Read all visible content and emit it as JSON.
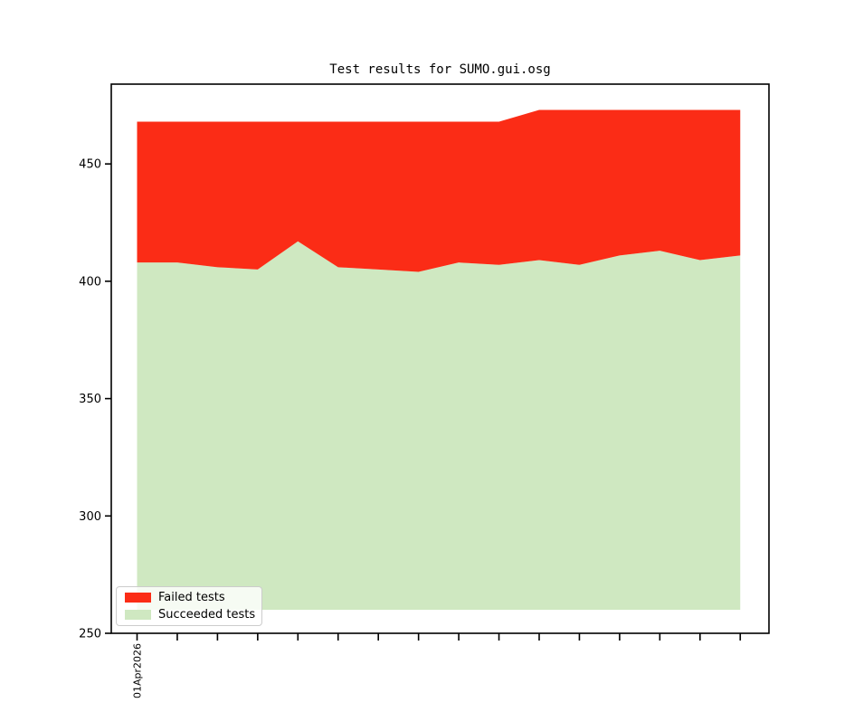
{
  "figure": {
    "background": "#ffffff",
    "axes_color": "#000000"
  },
  "chart_data": {
    "type": "area",
    "stacked": true,
    "title": "Test results for SUMO.gui.osg",
    "xlabel": "",
    "ylabel": "",
    "ylim": [
      250,
      484
    ],
    "yticks": [
      250,
      300,
      350,
      400,
      450
    ],
    "baseline": 260,
    "grid": false,
    "num_points": 16,
    "x_tick_labels": [
      "01Apr2026",
      "",
      "",
      "",
      "",
      "",
      "",
      "",
      "",
      "",
      "",
      "",
      "",
      "",
      "",
      ""
    ],
    "series": [
      {
        "name": "Failed tests",
        "color": "#fb2c16",
        "values": [
          60,
          60,
          62,
          63,
          51,
          62,
          63,
          64,
          60,
          61,
          64,
          66,
          62,
          60,
          64,
          62
        ]
      },
      {
        "name": "Succeeded tests",
        "color": "#cfe8c1",
        "values": [
          408,
          408,
          406,
          405,
          417,
          406,
          405,
          404,
          408,
          407,
          409,
          407,
          411,
          413,
          409,
          411
        ]
      }
    ],
    "totals": [
      468,
      468,
      468,
      468,
      468,
      468,
      468,
      468,
      468,
      468,
      473,
      473,
      473,
      473,
      473,
      473
    ],
    "legend": {
      "position": "lower-left",
      "entries": [
        "Failed tests",
        "Succeeded tests"
      ]
    }
  }
}
